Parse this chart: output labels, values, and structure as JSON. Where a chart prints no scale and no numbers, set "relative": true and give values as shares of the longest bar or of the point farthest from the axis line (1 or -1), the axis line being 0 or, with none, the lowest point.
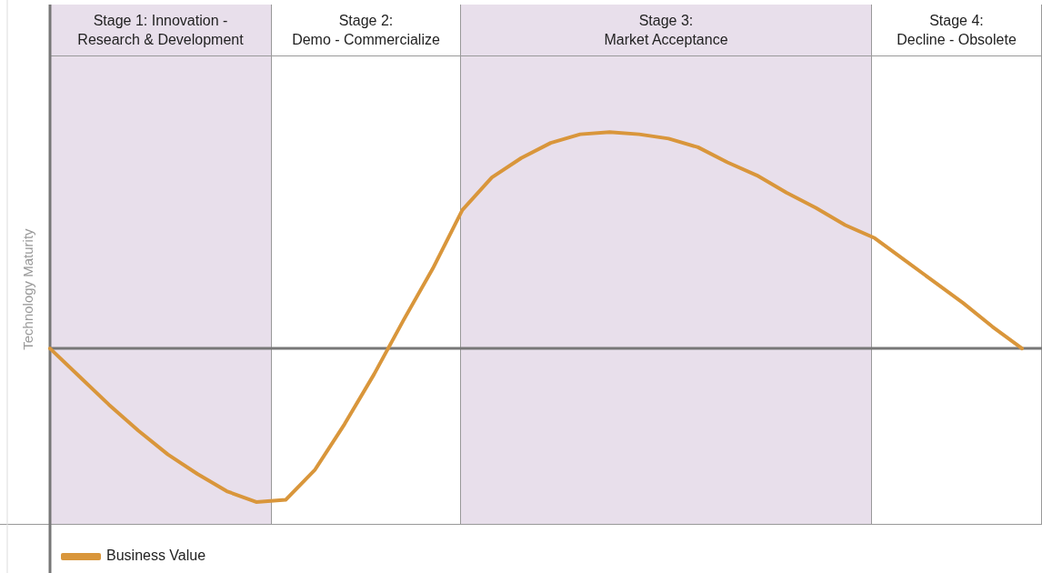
{
  "chart_data": {
    "type": "line",
    "relative": true,
    "ylabel": "Technology Maturity",
    "legend": "bottom left",
    "marker": "none",
    "line_style": "solid",
    "annotations": [
      "Stage 1: Innovation -\nResearch & Development",
      "Stage 2:\nDemo - Commercialize",
      "Stage 3:\nMarket Acceptance",
      "Stage 4:\nDecline - Obsolete"
    ],
    "categories": [
      null,
      null,
      null,
      null,
      null,
      null,
      null,
      null,
      null,
      null,
      null,
      null,
      null,
      null,
      null,
      null,
      null,
      null,
      null,
      null,
      null,
      null,
      null,
      null,
      null,
      null,
      null,
      null,
      null,
      null,
      null,
      null,
      null,
      null
    ],
    "series": [
      {
        "name": "Business Value",
        "color": "#d9963b",
        "values": [
          0,
          -0.13,
          -0.26,
          -0.38,
          -0.49,
          -0.58,
          -0.66,
          -0.71,
          -0.7,
          -0.56,
          -0.35,
          -0.12,
          0.13,
          0.37,
          0.64,
          0.79,
          0.88,
          0.95,
          0.99,
          1,
          0.99,
          0.97,
          0.93,
          0.86,
          0.8,
          0.72,
          0.65,
          0.57,
          0.51,
          0.41,
          0.31,
          0.21,
          0.1,
          0
        ]
      }
    ]
  }
}
